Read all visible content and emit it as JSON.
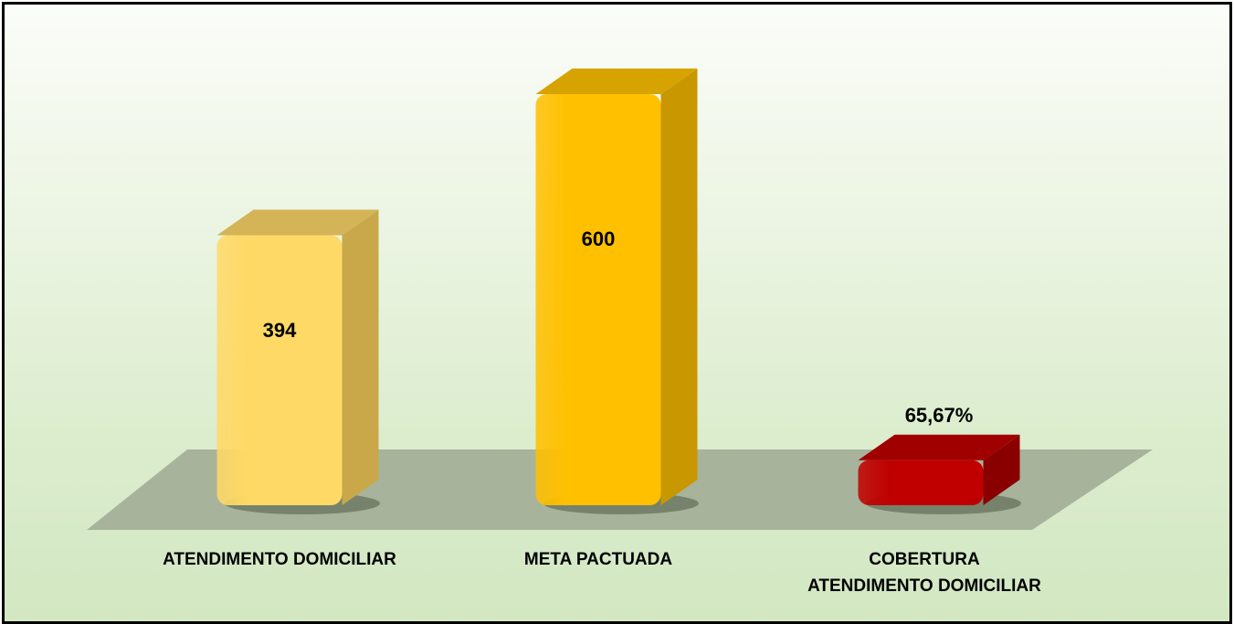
{
  "chart_data": {
    "type": "bar",
    "categories": [
      "ATENDIMENTO DOMICILIAR",
      "META PACTUADA",
      "COBERTURA ATENDIMENTO DOMICILIAR"
    ],
    "category_lines": [
      [
        "ATENDIMENTO DOMICILIAR"
      ],
      [
        "META PACTUADA"
      ],
      [
        "COBERTURA",
        "ATENDIMENTO DOMICILIAR"
      ]
    ],
    "values": [
      394,
      600,
      65.67
    ],
    "data_labels": [
      "394",
      "600",
      "65,67%"
    ],
    "colors": [
      "#FFD966",
      "#FFC000",
      "#C00000"
    ],
    "side_colors": [
      "#C9A84A",
      "#C99700",
      "#8A0000"
    ],
    "top_colors": [
      "#D4B457",
      "#D6A300",
      "#A00000"
    ],
    "floor_color": "#A7B39B",
    "ylim": [
      0,
      600
    ],
    "grid": false,
    "legend": "none",
    "bar_style": "3d"
  }
}
